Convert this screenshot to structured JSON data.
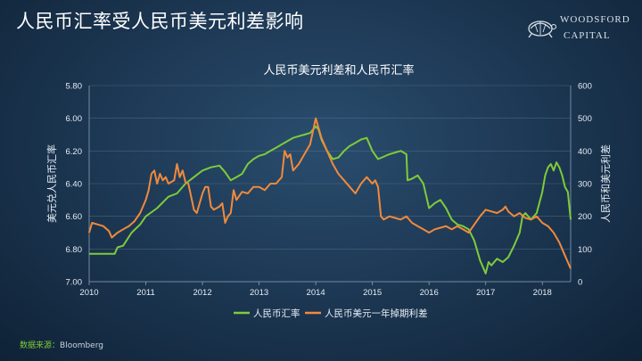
{
  "slide": {
    "title": "人民币汇率受人民币美元利差影响",
    "source_label": "数据来源：",
    "source_value": "Bloomberg"
  },
  "logo": {
    "line1": "WOODSFORD",
    "line2": "CAPITAL",
    "icon": "turtle-icon"
  },
  "colors": {
    "green": "#7ecb3a",
    "orange": "#f08a3c",
    "text": "#e6edf3"
  },
  "chart_data": {
    "type": "line",
    "title": "人民币美元利差和人民币汇率",
    "ylabel_left": "美元兑人民币汇率",
    "ylabel_right": "人民币和美元利差",
    "x_ticks": [
      "2010",
      "2011",
      "2012",
      "2013",
      "2014",
      "2015",
      "2016",
      "2017",
      "2018"
    ],
    "xlim": [
      2010,
      2018.5
    ],
    "y_left": {
      "lim": [
        5.8,
        7.0
      ],
      "inverted": true,
      "ticks": [
        "5.80",
        "6.00",
        "6.20",
        "6.40",
        "6.60",
        "6.80",
        "7.00"
      ]
    },
    "y_right": {
      "lim": [
        0,
        600
      ],
      "ticks": [
        "0",
        "100",
        "200",
        "300",
        "400",
        "500",
        "600"
      ]
    },
    "legend": {
      "placement": "bottom"
    },
    "series": [
      {
        "name": "人民币汇率",
        "axis": "left",
        "color": "#7ecb3a",
        "points": [
          [
            2010.0,
            6.83
          ],
          [
            2010.3,
            6.83
          ],
          [
            2010.45,
            6.83
          ],
          [
            2010.5,
            6.79
          ],
          [
            2010.6,
            6.78
          ],
          [
            2010.75,
            6.7
          ],
          [
            2010.9,
            6.65
          ],
          [
            2011.0,
            6.6
          ],
          [
            2011.2,
            6.55
          ],
          [
            2011.4,
            6.48
          ],
          [
            2011.55,
            6.46
          ],
          [
            2011.7,
            6.4
          ],
          [
            2011.85,
            6.36
          ],
          [
            2012.0,
            6.32
          ],
          [
            2012.15,
            6.3
          ],
          [
            2012.3,
            6.29
          ],
          [
            2012.4,
            6.33
          ],
          [
            2012.5,
            6.38
          ],
          [
            2012.6,
            6.36
          ],
          [
            2012.7,
            6.34
          ],
          [
            2012.8,
            6.28
          ],
          [
            2012.9,
            6.25
          ],
          [
            2013.0,
            6.23
          ],
          [
            2013.1,
            6.22
          ],
          [
            2013.2,
            6.2
          ],
          [
            2013.3,
            6.18
          ],
          [
            2013.4,
            6.16
          ],
          [
            2013.5,
            6.14
          ],
          [
            2013.6,
            6.12
          ],
          [
            2013.7,
            6.11
          ],
          [
            2013.8,
            6.1
          ],
          [
            2013.9,
            6.09
          ],
          [
            2014.0,
            6.05
          ],
          [
            2014.05,
            6.07
          ],
          [
            2014.1,
            6.13
          ],
          [
            2014.2,
            6.2
          ],
          [
            2014.3,
            6.25
          ],
          [
            2014.4,
            6.24
          ],
          [
            2014.5,
            6.2
          ],
          [
            2014.6,
            6.17
          ],
          [
            2014.7,
            6.15
          ],
          [
            2014.8,
            6.13
          ],
          [
            2014.9,
            6.12
          ],
          [
            2015.0,
            6.2
          ],
          [
            2015.1,
            6.25
          ],
          [
            2015.3,
            6.22
          ],
          [
            2015.5,
            6.2
          ],
          [
            2015.6,
            6.22
          ],
          [
            2015.62,
            6.38
          ],
          [
            2015.7,
            6.37
          ],
          [
            2015.8,
            6.35
          ],
          [
            2015.9,
            6.4
          ],
          [
            2016.0,
            6.55
          ],
          [
            2016.1,
            6.52
          ],
          [
            2016.2,
            6.5
          ],
          [
            2016.3,
            6.55
          ],
          [
            2016.4,
            6.62
          ],
          [
            2016.5,
            6.65
          ],
          [
            2016.6,
            6.66
          ],
          [
            2016.7,
            6.68
          ],
          [
            2016.8,
            6.75
          ],
          [
            2016.9,
            6.87
          ],
          [
            2017.0,
            6.95
          ],
          [
            2017.05,
            6.88
          ],
          [
            2017.1,
            6.9
          ],
          [
            2017.2,
            6.86
          ],
          [
            2017.3,
            6.88
          ],
          [
            2017.4,
            6.85
          ],
          [
            2017.5,
            6.78
          ],
          [
            2017.6,
            6.7
          ],
          [
            2017.65,
            6.6
          ],
          [
            2017.7,
            6.58
          ],
          [
            2017.8,
            6.62
          ],
          [
            2017.9,
            6.58
          ],
          [
            2018.0,
            6.45
          ],
          [
            2018.05,
            6.35
          ],
          [
            2018.1,
            6.3
          ],
          [
            2018.15,
            6.28
          ],
          [
            2018.2,
            6.32
          ],
          [
            2018.25,
            6.27
          ],
          [
            2018.3,
            6.3
          ],
          [
            2018.35,
            6.35
          ],
          [
            2018.4,
            6.42
          ],
          [
            2018.45,
            6.45
          ],
          [
            2018.48,
            6.55
          ],
          [
            2018.5,
            6.62
          ]
        ]
      },
      {
        "name": "人民币美元一年掉期利差",
        "axis": "right",
        "color": "#f08a3c",
        "points": [
          [
            2010.0,
            150
          ],
          [
            2010.05,
            180
          ],
          [
            2010.15,
            175
          ],
          [
            2010.25,
            170
          ],
          [
            2010.35,
            155
          ],
          [
            2010.4,
            135
          ],
          [
            2010.5,
            150
          ],
          [
            2010.6,
            160
          ],
          [
            2010.7,
            170
          ],
          [
            2010.8,
            185
          ],
          [
            2010.9,
            210
          ],
          [
            2011.0,
            250
          ],
          [
            2011.05,
            280
          ],
          [
            2011.1,
            330
          ],
          [
            2011.15,
            340
          ],
          [
            2011.2,
            300
          ],
          [
            2011.25,
            330
          ],
          [
            2011.3,
            310
          ],
          [
            2011.35,
            320
          ],
          [
            2011.4,
            300
          ],
          [
            2011.5,
            310
          ],
          [
            2011.55,
            360
          ],
          [
            2011.6,
            320
          ],
          [
            2011.65,
            340
          ],
          [
            2011.7,
            305
          ],
          [
            2011.75,
            300
          ],
          [
            2011.8,
            260
          ],
          [
            2011.85,
            220
          ],
          [
            2011.9,
            210
          ],
          [
            2012.0,
            270
          ],
          [
            2012.05,
            290
          ],
          [
            2012.1,
            290
          ],
          [
            2012.15,
            230
          ],
          [
            2012.2,
            220
          ],
          [
            2012.3,
            230
          ],
          [
            2012.35,
            240
          ],
          [
            2012.4,
            180
          ],
          [
            2012.45,
            200
          ],
          [
            2012.5,
            210
          ],
          [
            2012.55,
            280
          ],
          [
            2012.6,
            250
          ],
          [
            2012.7,
            275
          ],
          [
            2012.8,
            270
          ],
          [
            2012.9,
            290
          ],
          [
            2013.0,
            290
          ],
          [
            2013.1,
            280
          ],
          [
            2013.2,
            300
          ],
          [
            2013.3,
            300
          ],
          [
            2013.4,
            320
          ],
          [
            2013.45,
            400
          ],
          [
            2013.5,
            380
          ],
          [
            2013.55,
            390
          ],
          [
            2013.6,
            340
          ],
          [
            2013.7,
            360
          ],
          [
            2013.8,
            390
          ],
          [
            2013.9,
            420
          ],
          [
            2014.0,
            500
          ],
          [
            2014.05,
            470
          ],
          [
            2014.1,
            440
          ],
          [
            2014.2,
            400
          ],
          [
            2014.3,
            360
          ],
          [
            2014.4,
            330
          ],
          [
            2014.5,
            310
          ],
          [
            2014.6,
            290
          ],
          [
            2014.7,
            270
          ],
          [
            2014.8,
            300
          ],
          [
            2014.9,
            320
          ],
          [
            2015.0,
            300
          ],
          [
            2015.05,
            310
          ],
          [
            2015.1,
            290
          ],
          [
            2015.15,
            200
          ],
          [
            2015.2,
            190
          ],
          [
            2015.3,
            200
          ],
          [
            2015.4,
            195
          ],
          [
            2015.5,
            190
          ],
          [
            2015.6,
            200
          ],
          [
            2015.7,
            180
          ],
          [
            2015.8,
            170
          ],
          [
            2015.9,
            160
          ],
          [
            2016.0,
            150
          ],
          [
            2016.1,
            160
          ],
          [
            2016.2,
            165
          ],
          [
            2016.3,
            170
          ],
          [
            2016.4,
            160
          ],
          [
            2016.5,
            170
          ],
          [
            2016.6,
            160
          ],
          [
            2016.7,
            150
          ],
          [
            2016.8,
            175
          ],
          [
            2016.9,
            200
          ],
          [
            2017.0,
            220
          ],
          [
            2017.1,
            215
          ],
          [
            2017.2,
            210
          ],
          [
            2017.3,
            220
          ],
          [
            2017.35,
            230
          ],
          [
            2017.4,
            215
          ],
          [
            2017.5,
            200
          ],
          [
            2017.6,
            210
          ],
          [
            2017.7,
            195
          ],
          [
            2017.8,
            190
          ],
          [
            2017.9,
            200
          ],
          [
            2018.0,
            180
          ],
          [
            2018.1,
            170
          ],
          [
            2018.2,
            150
          ],
          [
            2018.3,
            120
          ],
          [
            2018.4,
            80
          ],
          [
            2018.5,
            40
          ]
        ]
      }
    ]
  }
}
